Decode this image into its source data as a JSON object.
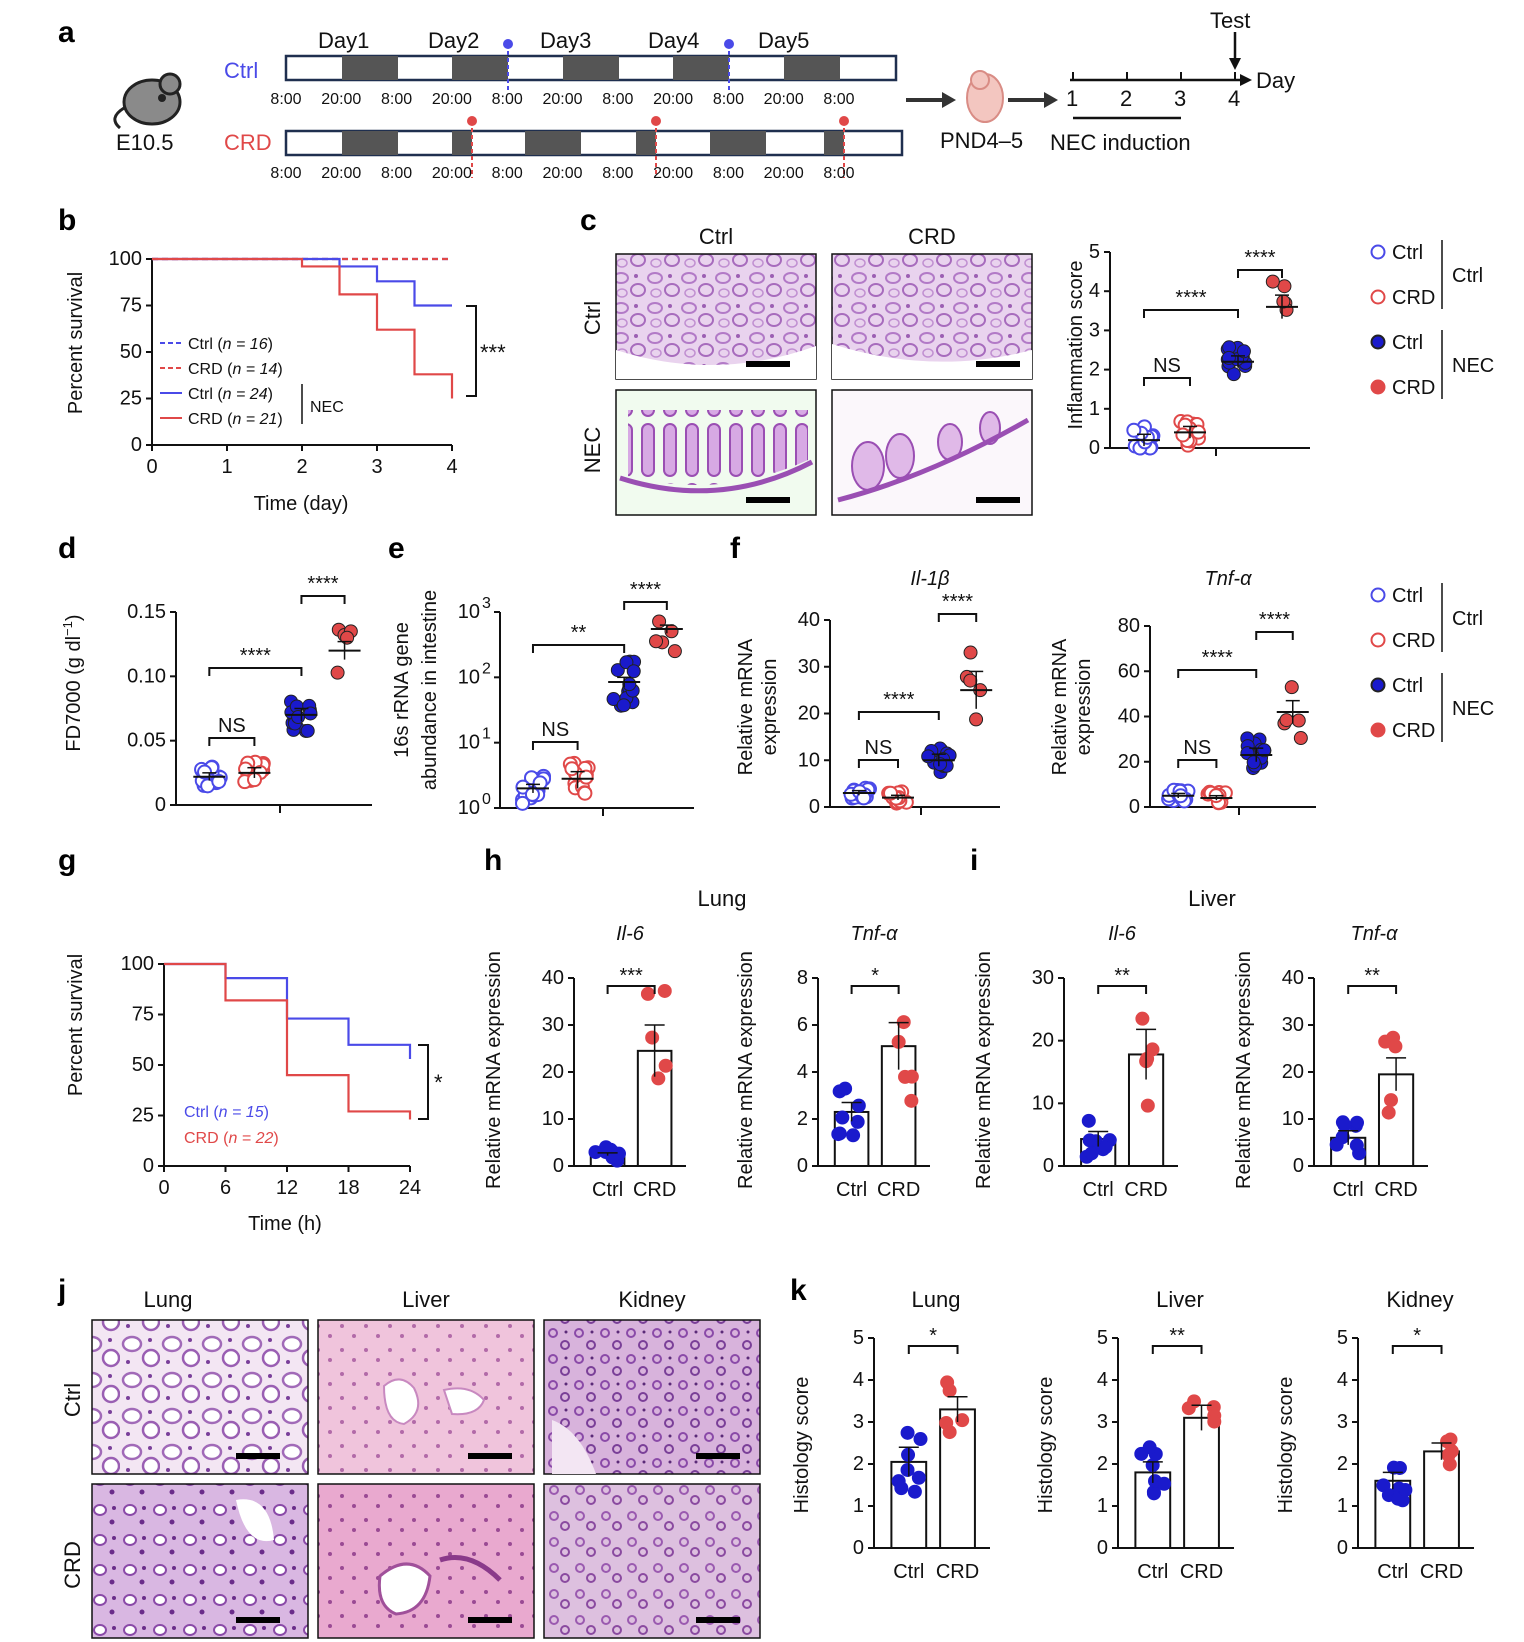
{
  "colors": {
    "ctrl": "#4a4ae8",
    "crd": "#e04848",
    "ctrl_dark": "#1a1acc",
    "black": "#111111"
  },
  "panel_labels": [
    "a",
    "b",
    "c",
    "d",
    "e",
    "f",
    "g",
    "h",
    "i",
    "j",
    "k"
  ],
  "panel_a": {
    "mouse_label": "E10.5",
    "days": [
      "Day1",
      "Day2",
      "Day3",
      "Day4",
      "Day5"
    ],
    "groups": [
      "Ctrl",
      "CRD"
    ],
    "times": [
      "8:00",
      "20:00",
      "8:00",
      "20:00",
      "8:00",
      "20:00",
      "8:00",
      "20:00",
      "8:00",
      "20:00",
      "8:00"
    ],
    "pnd": "PND4–5",
    "timeline_ticks": [
      "1",
      "2",
      "3",
      "4"
    ],
    "timeline_day": "Day",
    "test": "Test",
    "nec_induction": "NEC induction"
  },
  "panel_b": {
    "ylabel": "Percent survival",
    "xlabel": "Time (day)",
    "yticks": [
      "0",
      "25",
      "50",
      "75",
      "100"
    ],
    "xticks": [
      "0",
      "1",
      "2",
      "3",
      "4"
    ],
    "legend": [
      {
        "name": "Ctrl",
        "n": "n = 16"
      },
      {
        "name": "CRD",
        "n": "n = 14"
      },
      {
        "name": "Ctrl",
        "n": "n = 24"
      },
      {
        "name": "CRD",
        "n": "n = 21"
      }
    ],
    "nec": "NEC",
    "sig": "***"
  },
  "panel_c": {
    "col_titles": [
      "Ctrl",
      "CRD"
    ],
    "row_titles": [
      "Ctrl",
      "NEC"
    ],
    "ylabel": "Inflammation score",
    "yticks": [
      "0",
      "1",
      "2",
      "3",
      "4",
      "5"
    ],
    "sig": [
      "NS",
      "****",
      "****"
    ],
    "legend": [
      "Ctrl",
      "CRD",
      "Ctrl",
      "CRD"
    ],
    "legend_groups": [
      "Ctrl",
      "NEC"
    ]
  },
  "panel_d": {
    "ylabel": "FD7000 (g dl",
    "ylabel_sup": "−1",
    "ylabel_end": ")",
    "yticks": [
      "0",
      "0.05",
      "0.10",
      "0.15"
    ],
    "sig": [
      "NS",
      "****",
      "****"
    ]
  },
  "panel_e": {
    "ylabel1": "16s rRNA gene",
    "ylabel2": "abundance in intestine",
    "yticks": [
      "10",
      "10",
      "10",
      "10"
    ],
    "yexp": [
      "0",
      "1",
      "2",
      "3"
    ],
    "sig": [
      "NS",
      "**",
      "****"
    ]
  },
  "panel_f": {
    "titles": [
      "Il-1β",
      "Tnf-α"
    ],
    "ylabel1": "Relative mRNA",
    "ylabel2": "expression",
    "yticks1": [
      "0",
      "10",
      "20",
      "30",
      "40"
    ],
    "yticks2": [
      "0",
      "20",
      "40",
      "60",
      "80"
    ],
    "sig1": [
      "NS",
      "****",
      "****"
    ],
    "sig2": [
      "NS",
      "****",
      "****"
    ],
    "legend": [
      "Ctrl",
      "CRD",
      "Ctrl",
      "CRD"
    ],
    "legend_groups": [
      "Ctrl",
      "NEC"
    ]
  },
  "panel_g": {
    "ylabel": "Percent survival",
    "xlabel": "Time (h)",
    "yticks": [
      "0",
      "25",
      "50",
      "75",
      "100"
    ],
    "xticks": [
      "0",
      "6",
      "12",
      "18",
      "24"
    ],
    "legend": [
      {
        "name": "Ctrl",
        "n": "n = 15"
      },
      {
        "name": "CRD",
        "n": "n = 22"
      }
    ],
    "sig": "*"
  },
  "panel_h": {
    "title": "Lung",
    "subtitles": [
      "Il-6",
      "Tnf-α"
    ],
    "ylabel": "Relative mRNA expression",
    "yticks1": [
      "0",
      "10",
      "20",
      "30",
      "40"
    ],
    "yticks2": [
      "0",
      "2",
      "4",
      "6",
      "8"
    ],
    "sig": [
      "***",
      "*"
    ],
    "xticks": [
      "Ctrl",
      "CRD"
    ]
  },
  "panel_i": {
    "title": "Liver",
    "subtitles": [
      "Il-6",
      "Tnf-α"
    ],
    "ylabel": "Relative mRNA expression",
    "yticks1": [
      "0",
      "10",
      "20",
      "30"
    ],
    "yticks2": [
      "0",
      "10",
      "20",
      "30",
      "40"
    ],
    "sig": [
      "**",
      "**"
    ],
    "xticks": [
      "Ctrl",
      "CRD"
    ]
  },
  "panel_j": {
    "col_titles": [
      "Lung",
      "Liver",
      "Kidney"
    ],
    "row_titles": [
      "Ctrl",
      "CRD"
    ]
  },
  "panel_k": {
    "titles": [
      "Lung",
      "Liver",
      "Kidney"
    ],
    "ylabel": "Histology score",
    "yticks": [
      "0",
      "1",
      "2",
      "3",
      "4",
      "5"
    ],
    "sig": [
      "*",
      "**",
      "*"
    ],
    "xticks": [
      "Ctrl",
      "CRD"
    ]
  },
  "chart_data": [
    {
      "type": "line",
      "id": "b",
      "x": [
        0,
        1,
        2,
        2.5,
        3,
        3.5,
        4
      ],
      "ylim": [
        0,
        100
      ],
      "xlim": [
        0,
        4
      ],
      "series": [
        {
          "name": "Ctrl",
          "values": [
            100,
            100,
            100,
            100,
            100,
            100,
            100
          ]
        },
        {
          "name": "CRD",
          "values": [
            100,
            100,
            100,
            100,
            100,
            100,
            100
          ]
        },
        {
          "name": "Ctrl",
          "values": [
            100,
            100,
            100,
            96,
            88,
            75,
            75
          ]
        },
        {
          "name": "CRD",
          "values": [
            100,
            100,
            96,
            81,
            62,
            38,
            25
          ]
        }
      ]
    },
    {
      "type": "scatter",
      "id": "c",
      "categories": [
        "Ctrl",
        "CRD",
        "Ctrl",
        "CRD"
      ],
      "ylim": [
        0,
        5
      ],
      "means": [
        0.2,
        0.4,
        2.2,
        3.6
      ],
      "sems": [
        0.15,
        0.15,
        0.15,
        0.3
      ]
    },
    {
      "type": "scatter",
      "id": "d",
      "categories": [
        "Ctrl",
        "CRD",
        "Ctrl",
        "CRD"
      ],
      "ylim": [
        0,
        0.15
      ],
      "means": [
        0.022,
        0.025,
        0.07,
        0.12
      ],
      "sems": [
        0.003,
        0.004,
        0.005,
        0.007
      ]
    },
    {
      "type": "scatter",
      "id": "e",
      "categories": [
        "Ctrl",
        "CRD",
        "Ctrl",
        "CRD"
      ],
      "ylim": [
        1,
        1000
      ],
      "means": [
        2,
        2.8,
        85,
        550
      ],
      "sems": [
        0.3,
        0.8,
        15,
        80
      ]
    },
    {
      "type": "scatter",
      "id": "f1",
      "categories": [
        "Ctrl",
        "CRD",
        "Ctrl",
        "CRD"
      ],
      "ylim": [
        0,
        40
      ],
      "means": [
        3,
        2,
        10,
        25
      ],
      "sems": [
        0.5,
        0.5,
        1.3,
        4
      ]
    },
    {
      "type": "scatter",
      "id": "f2",
      "categories": [
        "Ctrl",
        "CRD",
        "Ctrl",
        "CRD"
      ],
      "ylim": [
        0,
        80
      ],
      "means": [
        5,
        4,
        23,
        42
      ],
      "sems": [
        1,
        1,
        3,
        5
      ]
    },
    {
      "type": "line",
      "id": "g",
      "x": [
        0,
        6,
        12,
        18,
        24
      ],
      "ylim": [
        0,
        100
      ],
      "xlim": [
        0,
        24
      ],
      "series": [
        {
          "name": "Ctrl",
          "values": [
            100,
            93,
            73,
            60,
            53
          ]
        },
        {
          "name": "CRD",
          "values": [
            100,
            82,
            45,
            27,
            23
          ]
        }
      ]
    },
    {
      "type": "bar",
      "id": "h1",
      "categories": [
        "Ctrl",
        "CRD"
      ],
      "values": [
        2.5,
        24.5
      ],
      "sems": [
        0.3,
        5.5
      ],
      "ylim": [
        0,
        40
      ]
    },
    {
      "type": "bar",
      "id": "h2",
      "categories": [
        "Ctrl",
        "CRD"
      ],
      "values": [
        2.3,
        5.1
      ],
      "sems": [
        0.4,
        1
      ],
      "ylim": [
        0,
        8
      ]
    },
    {
      "type": "bar",
      "id": "i1",
      "categories": [
        "Ctrl",
        "CRD"
      ],
      "values": [
        4.3,
        17.8
      ],
      "sems": [
        1.2,
        4
      ],
      "ylim": [
        0,
        30
      ]
    },
    {
      "type": "bar",
      "id": "i2",
      "categories": [
        "Ctrl",
        "CRD"
      ],
      "values": [
        6,
        19.5
      ],
      "sems": [
        1.5,
        3.5
      ],
      "ylim": [
        0,
        40
      ]
    },
    {
      "type": "bar",
      "id": "k1",
      "categories": [
        "Ctrl",
        "CRD"
      ],
      "values": [
        2.05,
        3.3
      ],
      "sems": [
        0.35,
        0.3
      ],
      "ylim": [
        0,
        5
      ]
    },
    {
      "type": "bar",
      "id": "k2",
      "categories": [
        "Ctrl",
        "CRD"
      ],
      "values": [
        1.8,
        3.1
      ],
      "sems": [
        0.25,
        0.3
      ],
      "ylim": [
        0,
        5
      ]
    },
    {
      "type": "bar",
      "id": "k3",
      "categories": [
        "Ctrl",
        "CRD"
      ],
      "values": [
        1.6,
        2.3
      ],
      "sems": [
        0.2,
        0.2
      ],
      "ylim": [
        0,
        5
      ]
    }
  ]
}
